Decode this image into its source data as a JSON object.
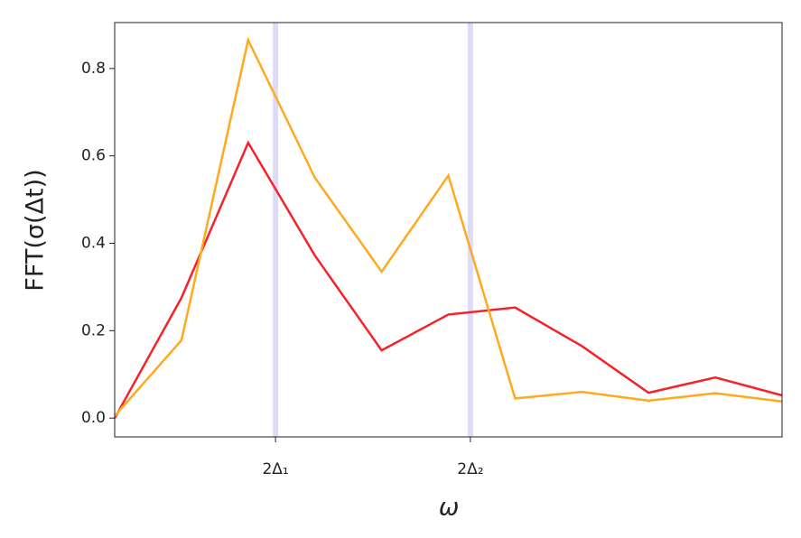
{
  "chart_data": {
    "type": "line",
    "x": [
      0,
      1,
      2,
      3,
      4,
      5,
      6,
      7,
      8,
      9,
      10
    ],
    "series": [
      {
        "color": "#f5222a",
        "values": [
          0.0,
          0.275,
          0.63,
          0.372,
          0.155,
          0.237,
          0.253,
          0.165,
          0.058,
          0.093,
          0.052
        ]
      },
      {
        "color": "#ffaa1e",
        "values": [
          0.005,
          0.178,
          0.865,
          0.55,
          0.335,
          0.555,
          0.045,
          0.06,
          0.04,
          0.057,
          0.038
        ]
      }
    ],
    "xlim": [
      0,
      10
    ],
    "ylim": [
      -0.043,
      0.905
    ],
    "xticks": [
      {
        "value": 2.41,
        "label": "2Δ₁"
      },
      {
        "value": 5.33,
        "label": "2Δ₂"
      }
    ],
    "yticks": [
      {
        "value": 0,
        "label": "0.0"
      },
      0.2,
      0.4,
      0.6,
      0.8
    ],
    "xtick_line_color": "#dcdcf8",
    "xlabel": "ω",
    "ylabel": "FFT(σ(Δt))"
  }
}
